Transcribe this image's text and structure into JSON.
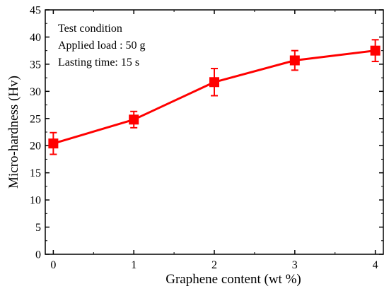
{
  "chart_data": {
    "type": "line",
    "xlabel": "Graphene content  (wt %)",
    "ylabel": "Micro-hardness (Hv)",
    "xlim": [
      -0.1,
      4.1
    ],
    "ylim": [
      0,
      45
    ],
    "x_ticks": [
      "0",
      "1",
      "2",
      "3",
      "4"
    ],
    "y_ticks": [
      "0",
      "5",
      "10",
      "15",
      "20",
      "25",
      "30",
      "35",
      "40",
      "45"
    ],
    "grid": false,
    "series": [
      {
        "x": [
          0,
          1,
          2,
          3,
          4
        ],
        "y": [
          20.4,
          24.8,
          31.7,
          35.7,
          37.5
        ],
        "y_err": [
          2.0,
          1.5,
          2.5,
          1.8,
          2.0
        ],
        "color": "#ff0000",
        "marker": "square"
      }
    ],
    "annotations": [
      "Test condition",
      "Applied load : 50 g",
      "Lasting time: 15 s"
    ]
  }
}
